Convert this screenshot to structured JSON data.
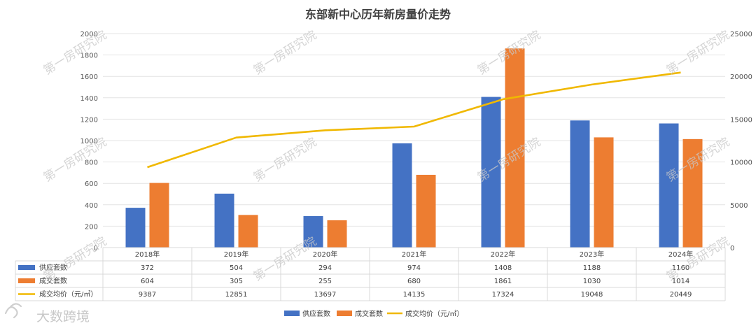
{
  "chart_data": {
    "type": "bar+line",
    "title": "东部新中心历年新房量价走势",
    "categories": [
      "2018年",
      "2019年",
      "2020年",
      "2021年",
      "2022年",
      "2023年",
      "2024年"
    ],
    "series": [
      {
        "name": "供应套数",
        "type": "bar",
        "axis": "left",
        "color": "#4472c4",
        "values": [
          372,
          504,
          294,
          974,
          1408,
          1188,
          1160
        ]
      },
      {
        "name": "成交套数",
        "type": "bar",
        "axis": "left",
        "color": "#ed7d31",
        "values": [
          604,
          305,
          255,
          680,
          1861,
          1030,
          1014
        ]
      },
      {
        "name": "成交均价（元/㎡）",
        "type": "line",
        "axis": "right",
        "color": "#f0b800",
        "values": [
          9387,
          12851,
          13697,
          14135,
          17324,
          19048,
          20449
        ]
      }
    ],
    "left_axis": {
      "min": 0,
      "max": 2000,
      "step": 200,
      "ticks": [
        "0",
        "200",
        "400",
        "600",
        "800",
        "1000",
        "1200",
        "1400",
        "1600",
        "1800",
        "2000"
      ]
    },
    "right_axis": {
      "min": 0,
      "max": 25000,
      "step": 5000,
      "ticks": [
        "0",
        "5000",
        "10000",
        "15000",
        "20000",
        "25000"
      ]
    },
    "legend": [
      "供应套数",
      "成交套数",
      "成交均价（元/㎡）"
    ],
    "watermark": "第一房研究院",
    "brand": "大数跨境"
  }
}
